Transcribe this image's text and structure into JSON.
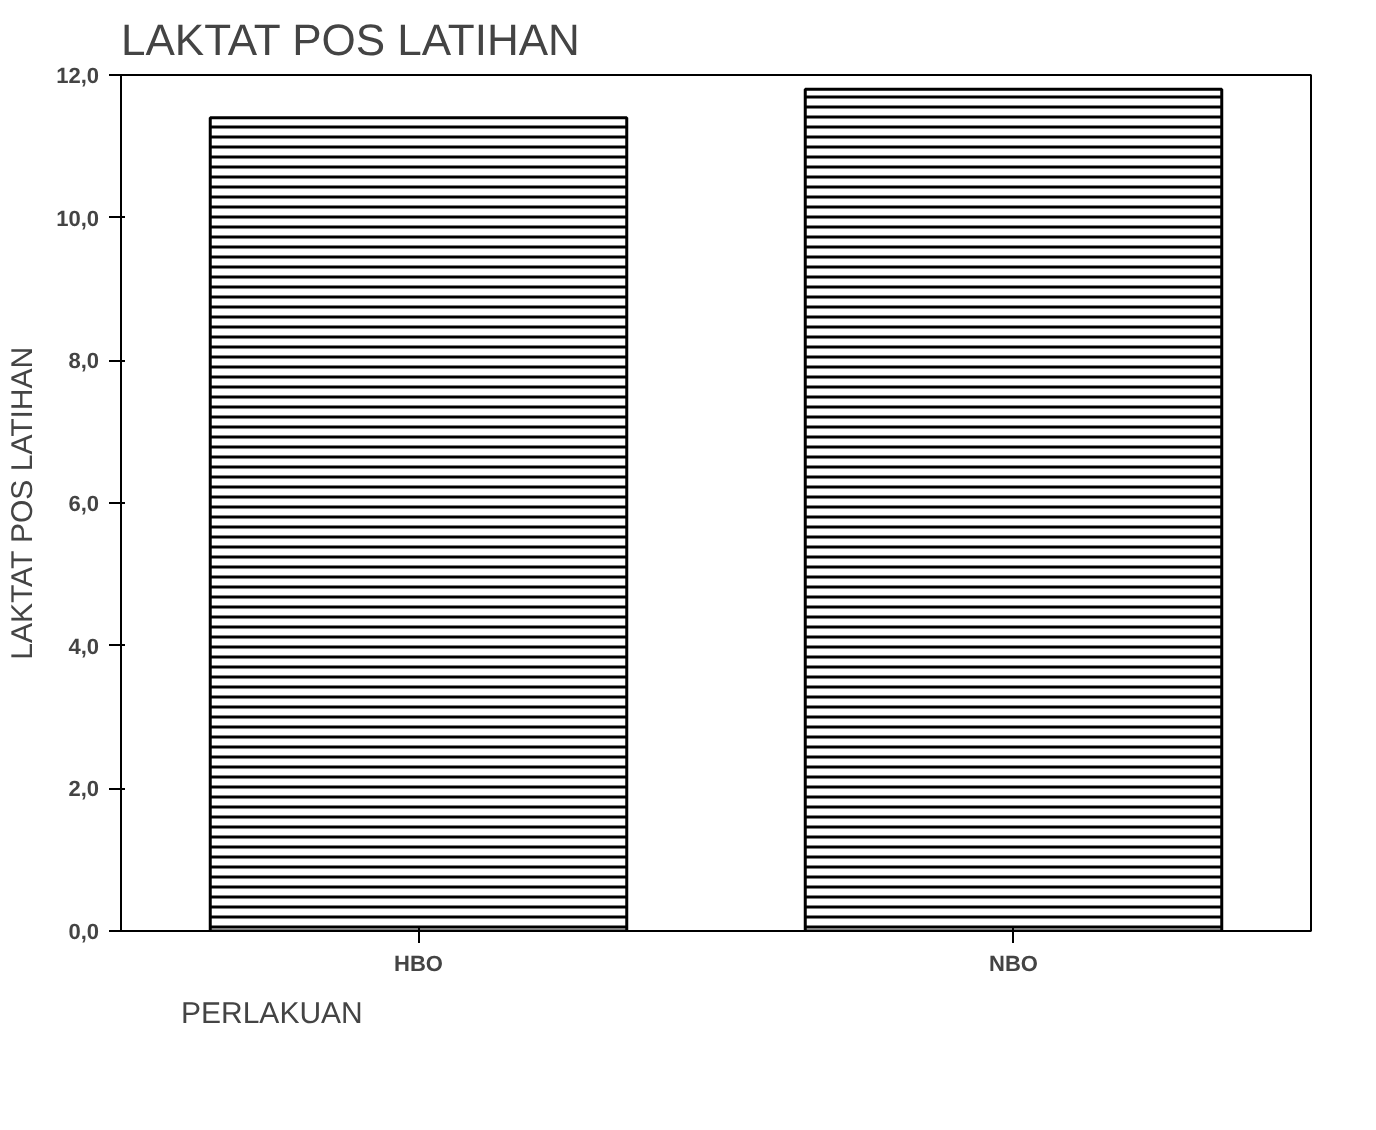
{
  "chart_data": {
    "type": "bar",
    "title": "LAKTAT POS LATIHAN",
    "xlabel": "PERLAKUAN",
    "ylabel": "LAKTAT POS LATIHAN",
    "categories": [
      "HBO",
      "NBO"
    ],
    "values": [
      11.4,
      11.8
    ],
    "color": "#000000",
    "ylim": [
      0,
      12
    ],
    "yticks": [
      {
        "value": 0,
        "label": "0,0"
      },
      {
        "value": 2,
        "label": "2,0"
      },
      {
        "value": 4,
        "label": "4,0"
      },
      {
        "value": 6,
        "label": "6,0"
      },
      {
        "value": 8,
        "label": "8,0"
      },
      {
        "value": 10,
        "label": "10,0"
      },
      {
        "value": 12,
        "label": "12,0"
      }
    ],
    "grid": false
  }
}
